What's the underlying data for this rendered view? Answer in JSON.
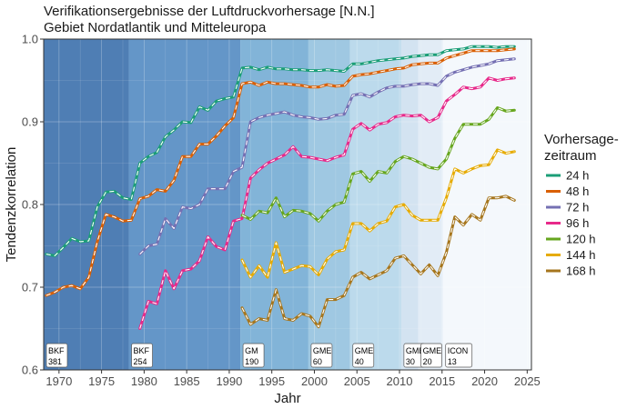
{
  "chart_data": {
    "type": "line",
    "title": "Verifikationsergebnisse der Luftdruckvorhersage [N.N.]",
    "subtitle": "Gebiet Nordatlantik und Mitteleuropa",
    "xlabel": "Jahr",
    "ylabel": "Tendenzkorrelation",
    "xlim": [
      1968.2,
      2025.5
    ],
    "ylim": [
      0.6,
      1.0
    ],
    "xticks": [
      "1970",
      "1975",
      "1980",
      "1985",
      "1990",
      "1995",
      "2000",
      "2005",
      "2010",
      "2015",
      "2020",
      "2025"
    ],
    "yticks": [
      "0.6",
      "0.7",
      "0.8",
      "0.9",
      "1.0"
    ],
    "grid": true,
    "legend": {
      "title_line1": "Vorhersage-",
      "title_line2": "zeitraum",
      "position": "right"
    },
    "model_periods": [
      {
        "name": "BKF",
        "subtitle": "381",
        "start": 1968.2,
        "end": 1978.2,
        "color": "#4f7eb4"
      },
      {
        "name": "BKF",
        "subtitle": "254",
        "start": 1978.2,
        "end": 1991.3,
        "color": "#6496c8"
      },
      {
        "name": "GM",
        "subtitle": "190",
        "start": 1991.3,
        "end": 1999.3,
        "color": "#82b4d8"
      },
      {
        "name": "GME",
        "subtitle": "60",
        "start": 1999.3,
        "end": 2004.2,
        "color": "#9fc8e2"
      },
      {
        "name": "GME",
        "subtitle": "40",
        "start": 2004.2,
        "end": 2010.2,
        "color": "#bcdaec"
      },
      {
        "name": "GME",
        "subtitle": "30",
        "start": 2010.2,
        "end": 2012.2,
        "color": "#d3e3f1"
      },
      {
        "name": "GME",
        "subtitle": "20",
        "start": 2012.2,
        "end": 2015.1,
        "color": "#e2ecf6"
      },
      {
        "name": "ICON",
        "subtitle": "13",
        "start": 2015.1,
        "end": 2025.5,
        "color": "#f4f8fc"
      }
    ],
    "series": [
      {
        "name": "24 h",
        "color": "#1b9e77",
        "x": [
          1968.5,
          1969.5,
          1970.5,
          1971.5,
          1972.5,
          1973.5,
          1974.5,
          1975.5,
          1976.5,
          1977.5,
          1978.5,
          1979.5,
          1980.5,
          1981.5,
          1982.5,
          1983.5,
          1984.5,
          1985.5,
          1986.5,
          1987.5,
          1988.5,
          1989.5,
          1990.5,
          1991.5,
          1992.5,
          1993.5,
          1994.5,
          1995.5,
          1996.5,
          1997.5,
          1998.5,
          1999.5,
          2000.5,
          2001.5,
          2002.5,
          2003.5,
          2004.5,
          2005.5,
          2006.5,
          2007.5,
          2008.5,
          2009.5,
          2010.5,
          2011.5,
          2012.5,
          2013.5,
          2014.5,
          2015.5,
          2016.5,
          2017.5,
          2018.5,
          2019.5,
          2020.5,
          2021.5,
          2022.5,
          2023.5
        ],
        "y": [
          0.74,
          0.738,
          0.748,
          0.759,
          0.755,
          0.756,
          0.797,
          0.815,
          0.816,
          0.808,
          0.806,
          0.85,
          0.858,
          0.863,
          0.882,
          0.89,
          0.9,
          0.899,
          0.918,
          0.914,
          0.925,
          0.928,
          0.93,
          0.965,
          0.966,
          0.963,
          0.966,
          0.964,
          0.964,
          0.963,
          0.963,
          0.962,
          0.962,
          0.963,
          0.962,
          0.961,
          0.97,
          0.97,
          0.972,
          0.974,
          0.975,
          0.976,
          0.977,
          0.979,
          0.98,
          0.981,
          0.981,
          0.986,
          0.987,
          0.988,
          0.991,
          0.991,
          0.991,
          0.99,
          0.991,
          0.991
        ]
      },
      {
        "name": "48 h",
        "color": "#d95f02",
        "x": [
          1968.5,
          1969.5,
          1970.5,
          1971.5,
          1972.5,
          1973.5,
          1974.5,
          1975.5,
          1976.5,
          1977.5,
          1978.5,
          1979.5,
          1980.5,
          1981.5,
          1982.5,
          1983.5,
          1984.5,
          1985.5,
          1986.5,
          1987.5,
          1988.5,
          1989.5,
          1990.5,
          1991.5,
          1992.5,
          1993.5,
          1994.5,
          1995.5,
          1996.5,
          1997.5,
          1998.5,
          1999.5,
          2000.5,
          2001.5,
          2002.5,
          2003.5,
          2004.5,
          2005.5,
          2006.5,
          2007.5,
          2008.5,
          2009.5,
          2010.5,
          2011.5,
          2012.5,
          2013.5,
          2014.5,
          2015.5,
          2016.5,
          2017.5,
          2018.5,
          2019.5,
          2020.5,
          2021.5,
          2022.5,
          2023.5
        ],
        "y": [
          0.69,
          0.694,
          0.7,
          0.702,
          0.698,
          0.712,
          0.755,
          0.788,
          0.785,
          0.78,
          0.781,
          0.807,
          0.81,
          0.818,
          0.816,
          0.829,
          0.858,
          0.858,
          0.873,
          0.873,
          0.883,
          0.895,
          0.905,
          0.946,
          0.948,
          0.944,
          0.948,
          0.946,
          0.946,
          0.945,
          0.944,
          0.942,
          0.942,
          0.945,
          0.943,
          0.944,
          0.955,
          0.957,
          0.958,
          0.96,
          0.962,
          0.964,
          0.965,
          0.969,
          0.97,
          0.971,
          0.971,
          0.977,
          0.98,
          0.983,
          0.986,
          0.986,
          0.986,
          0.986,
          0.987,
          0.988
        ]
      },
      {
        "name": "72 h",
        "color": "#7570b3",
        "x": [
          1979.5,
          1980.5,
          1981.5,
          1982.5,
          1983.5,
          1984.5,
          1985.5,
          1986.5,
          1987.5,
          1988.5,
          1989.5,
          1990.5,
          1991.5,
          1992.5,
          1993.5,
          1994.5,
          1995.5,
          1996.5,
          1997.5,
          1998.5,
          1999.5,
          2000.5,
          2001.5,
          2002.5,
          2003.5,
          2004.5,
          2005.5,
          2006.5,
          2007.5,
          2008.5,
          2009.5,
          2010.5,
          2011.5,
          2012.5,
          2013.5,
          2014.5,
          2015.5,
          2016.5,
          2017.5,
          2018.5,
          2019.5,
          2020.5,
          2021.5,
          2022.5,
          2023.5
        ],
        "y": [
          0.74,
          0.75,
          0.752,
          0.783,
          0.771,
          0.797,
          0.795,
          0.8,
          0.819,
          0.819,
          0.819,
          0.84,
          0.845,
          0.9,
          0.905,
          0.908,
          0.91,
          0.912,
          0.908,
          0.906,
          0.905,
          0.903,
          0.904,
          0.908,
          0.909,
          0.932,
          0.934,
          0.93,
          0.936,
          0.941,
          0.943,
          0.943,
          0.945,
          0.946,
          0.946,
          0.944,
          0.955,
          0.96,
          0.963,
          0.966,
          0.968,
          0.97,
          0.974,
          0.975,
          0.976
        ]
      },
      {
        "name": "96 h",
        "color": "#e7298a",
        "x": [
          1979.5,
          1980.5,
          1981.5,
          1982.5,
          1983.5,
          1984.5,
          1985.5,
          1986.5,
          1987.5,
          1988.5,
          1989.5,
          1990.5,
          1991.5,
          1992.5,
          1993.5,
          1994.5,
          1995.5,
          1996.5,
          1997.5,
          1998.5,
          1999.5,
          2000.5,
          2001.5,
          2002.5,
          2003.5,
          2004.5,
          2005.5,
          2006.5,
          2007.5,
          2008.5,
          2009.5,
          2010.5,
          2011.5,
          2012.5,
          2013.5,
          2014.5,
          2015.5,
          2016.5,
          2017.5,
          2018.5,
          2019.5,
          2020.5,
          2021.5,
          2022.5,
          2023.5
        ],
        "y": [
          0.65,
          0.683,
          0.68,
          0.72,
          0.698,
          0.72,
          0.722,
          0.732,
          0.761,
          0.749,
          0.745,
          0.78,
          0.783,
          0.832,
          0.842,
          0.85,
          0.855,
          0.86,
          0.87,
          0.858,
          0.857,
          0.855,
          0.853,
          0.857,
          0.86,
          0.891,
          0.898,
          0.89,
          0.897,
          0.899,
          0.906,
          0.908,
          0.907,
          0.908,
          0.9,
          0.905,
          0.925,
          0.933,
          0.942,
          0.94,
          0.942,
          0.953,
          0.95,
          0.952,
          0.953
        ]
      },
      {
        "name": "120 h",
        "color": "#66a61e",
        "x": [
          1991.5,
          1992.5,
          1993.5,
          1994.5,
          1995.5,
          1996.5,
          1997.5,
          1998.5,
          1999.5,
          2000.5,
          2001.5,
          2002.5,
          2003.5,
          2004.5,
          2005.5,
          2006.5,
          2007.5,
          2008.5,
          2009.5,
          2010.5,
          2011.5,
          2012.5,
          2013.5,
          2014.5,
          2015.5,
          2016.5,
          2017.5,
          2018.5,
          2019.5,
          2020.5,
          2021.5,
          2022.5,
          2023.5
        ],
        "y": [
          0.787,
          0.782,
          0.792,
          0.79,
          0.808,
          0.785,
          0.793,
          0.792,
          0.789,
          0.78,
          0.792,
          0.8,
          0.803,
          0.837,
          0.84,
          0.828,
          0.84,
          0.838,
          0.852,
          0.858,
          0.855,
          0.85,
          0.845,
          0.843,
          0.855,
          0.88,
          0.897,
          0.897,
          0.897,
          0.903,
          0.917,
          0.913,
          0.914
        ]
      },
      {
        "name": "144 h",
        "color": "#e6ab02",
        "x": [
          1991.5,
          1992.5,
          1993.5,
          1994.5,
          1995.5,
          1996.5,
          1997.5,
          1998.5,
          1999.5,
          2000.5,
          2001.5,
          2002.5,
          2003.5,
          2004.5,
          2005.5,
          2006.5,
          2007.5,
          2008.5,
          2009.5,
          2010.5,
          2011.5,
          2012.5,
          2013.5,
          2014.5,
          2015.5,
          2016.5,
          2017.5,
          2018.5,
          2019.5,
          2020.5,
          2021.5,
          2022.5,
          2023.5
        ],
        "y": [
          0.733,
          0.712,
          0.726,
          0.712,
          0.754,
          0.718,
          0.722,
          0.726,
          0.725,
          0.715,
          0.734,
          0.743,
          0.745,
          0.777,
          0.777,
          0.768,
          0.777,
          0.78,
          0.797,
          0.8,
          0.787,
          0.781,
          0.781,
          0.781,
          0.808,
          0.843,
          0.838,
          0.843,
          0.847,
          0.848,
          0.866,
          0.862,
          0.864
        ]
      },
      {
        "name": "168 h",
        "color": "#a6761d",
        "x": [
          1991.5,
          1992.5,
          1993.5,
          1994.5,
          1995.5,
          1996.5,
          1997.5,
          1998.5,
          1999.5,
          2000.5,
          2001.5,
          2002.5,
          2003.5,
          2004.5,
          2005.5,
          2006.5,
          2007.5,
          2008.5,
          2009.5,
          2010.5,
          2011.5,
          2012.5,
          2013.5,
          2014.5,
          2015.5,
          2016.5,
          2017.5,
          2018.5,
          2019.5,
          2020.5,
          2021.5,
          2022.5,
          2023.5
        ],
        "y": [
          0.675,
          0.655,
          0.662,
          0.66,
          0.697,
          0.662,
          0.66,
          0.668,
          0.665,
          0.652,
          0.685,
          0.685,
          0.69,
          0.712,
          0.718,
          0.71,
          0.715,
          0.72,
          0.735,
          0.738,
          0.727,
          0.716,
          0.727,
          0.714,
          0.742,
          0.785,
          0.775,
          0.788,
          0.781,
          0.808,
          0.808,
          0.81,
          0.805
        ]
      }
    ]
  }
}
